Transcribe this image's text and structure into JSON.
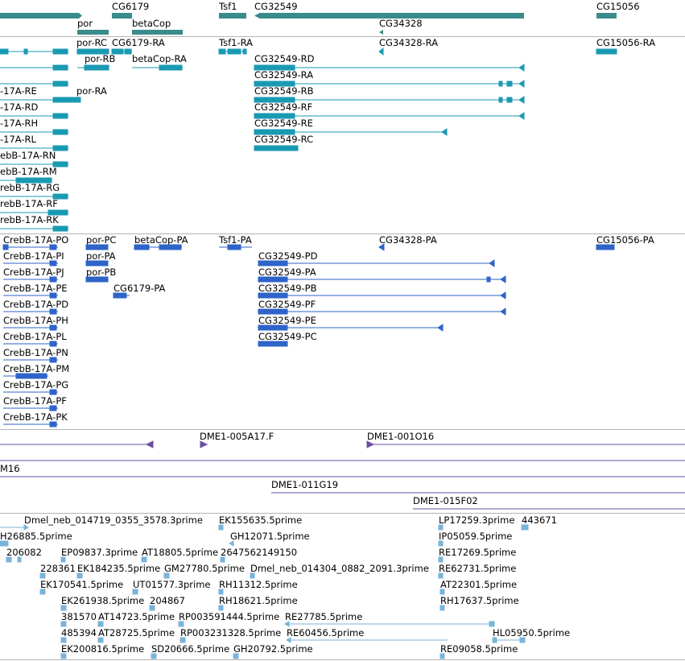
{
  "colors": {
    "gene": "#3a8b8b",
    "mrna": "#1a9ab2",
    "polypeptide": "#2e63c8",
    "clone": "#6a4fa0",
    "est": "#7ab3d8",
    "divider": "#b4b4b4"
  },
  "tracks": [
    {
      "id": "gene",
      "label_h": "gene",
      "features": [
        {
          "label": "CG6179"
        },
        {
          "label": "Tsf1"
        },
        {
          "label": "CG32549"
        },
        {
          "label": "CG15056"
        },
        {
          "label": "por"
        },
        {
          "label": "betaCop"
        },
        {
          "label": "CG34328"
        }
      ]
    },
    {
      "id": "mrna",
      "features": [
        {
          "label": "por-RC"
        },
        {
          "label": "CG6179-RA"
        },
        {
          "label": "Tsf1-RA"
        },
        {
          "label": "CG34328-RA"
        },
        {
          "label": "CG15056-RA"
        },
        {
          "label": "por-RB"
        },
        {
          "label": "betaCop-RA"
        },
        {
          "label": "CG32549-RD"
        },
        {
          "label": "CG32549-RA"
        },
        {
          "label": "-17A-RE"
        },
        {
          "label": "por-RA"
        },
        {
          "label": "CG32549-RB"
        },
        {
          "label": "-17A-RD"
        },
        {
          "label": "CG32549-RF"
        },
        {
          "label": "-17A-RH"
        },
        {
          "label": "CG32549-RE"
        },
        {
          "label": "-17A-RL"
        },
        {
          "label": "CG32549-RC"
        },
        {
          "label": "ebB-17A-RN"
        },
        {
          "label": "ebB-17A-RM"
        },
        {
          "label": "rebB-17A-RG"
        },
        {
          "label": "rebB-17A-RF"
        },
        {
          "label": "rebB-17A-RK"
        }
      ]
    },
    {
      "id": "polypeptide",
      "features": [
        {
          "label": "CrebB-17A-PO"
        },
        {
          "label": "por-PC"
        },
        {
          "label": "betaCop-PA"
        },
        {
          "label": "Tsf1-PA"
        },
        {
          "label": "CG34328-PA"
        },
        {
          "label": "CG15056-PA"
        },
        {
          "label": "CrebB-17A-PI"
        },
        {
          "label": "por-PA"
        },
        {
          "label": "CG32549-PD"
        },
        {
          "label": "CrebB-17A-PJ"
        },
        {
          "label": "por-PB"
        },
        {
          "label": "CG32549-PA"
        },
        {
          "label": "CrebB-17A-PE"
        },
        {
          "label": "CG6179-PA"
        },
        {
          "label": "CG32549-PB"
        },
        {
          "label": "CrebB-17A-PD"
        },
        {
          "label": "CG32549-PF"
        },
        {
          "label": "CrebB-17A-PH"
        },
        {
          "label": "CG32549-PE"
        },
        {
          "label": "CrebB-17A-PL"
        },
        {
          "label": "CG32549-PC"
        },
        {
          "label": "CrebB-17A-PN"
        },
        {
          "label": "CrebB-17A-PM"
        },
        {
          "label": "CrebB-17A-PG"
        },
        {
          "label": "CrebB-17A-PF"
        },
        {
          "label": "CrebB-17A-PK"
        }
      ]
    },
    {
      "id": "clones",
      "features": [
        {
          "label": "DME1-005A17.F"
        },
        {
          "label": "DME1-001O16"
        },
        {
          "label": "M16"
        },
        {
          "label": "DME1-011G19"
        },
        {
          "label": "DME1-015F02"
        }
      ]
    },
    {
      "id": "est",
      "features": [
        {
          "label": "Dmel_neb_014719_0355_3578.3prime"
        },
        {
          "label": "EK155635.5prime"
        },
        {
          "label": "LP17259.3prime"
        },
        {
          "label": "443671"
        },
        {
          "label": "H26885.5prime"
        },
        {
          "label": "GH12071.5prime"
        },
        {
          "label": "IP05059.5prime"
        },
        {
          "label": "206082"
        },
        {
          "label": "EP09837.3prime"
        },
        {
          "label": "AT18805.5prime"
        },
        {
          "label": "2647562149150"
        },
        {
          "label": "RE17269.5prime"
        },
        {
          "label": "228361"
        },
        {
          "label": "EK184235.5prime"
        },
        {
          "label": "GM27780.5prime"
        },
        {
          "label": "Dmel_neb_014304_0882_2091.3prime"
        },
        {
          "label": "RE62731.5prime"
        },
        {
          "label": "EK170541.5prime"
        },
        {
          "label": "UT01577.3prime"
        },
        {
          "label": "RH11312.5prime"
        },
        {
          "label": "AT22301.5prime"
        },
        {
          "label": "EK261938.5prime"
        },
        {
          "label": "204867"
        },
        {
          "label": "RH18621.5prime"
        },
        {
          "label": "RH17637.5prime"
        },
        {
          "label": "381570"
        },
        {
          "label": "AT14723.5prime"
        },
        {
          "label": "RP003591444.5prime"
        },
        {
          "label": "RE27785.5prime"
        },
        {
          "label": "485394"
        },
        {
          "label": "AT28725.5prime"
        },
        {
          "label": "RP003231328.5prime"
        },
        {
          "label": "RE60456.5prime"
        },
        {
          "label": "HL05950.5prime"
        },
        {
          "label": "EK200816.5prime"
        },
        {
          "label": "SD20666.5prime"
        },
        {
          "label": "GH20792.5prime"
        },
        {
          "label": "RE09058.5prime"
        }
      ]
    }
  ]
}
